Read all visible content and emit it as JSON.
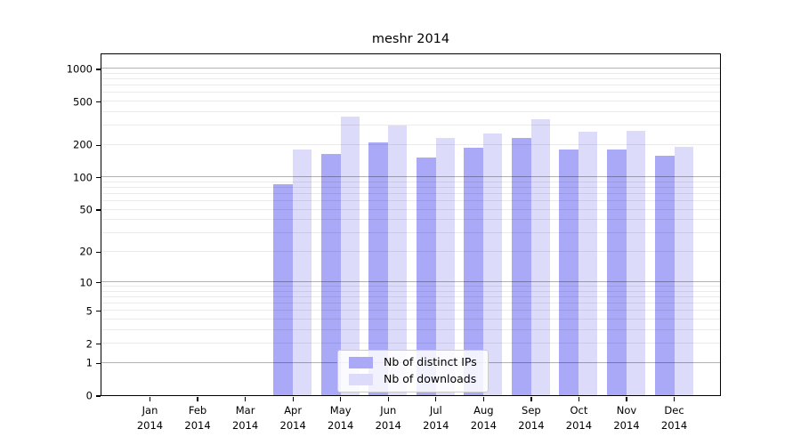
{
  "chart_data": {
    "type": "bar",
    "title": "meshr 2014",
    "scale": "log1p",
    "categories": [
      "Jan",
      "Feb",
      "Mar",
      "Apr",
      "May",
      "Jun",
      "Jul",
      "Aug",
      "Sep",
      "Oct",
      "Nov",
      "Dec"
    ],
    "year_label": "2014",
    "series": [
      {
        "name": "Nb of distinct IPs",
        "color": "#a9a9f8",
        "values": [
          0,
          0,
          0,
          85,
          163,
          210,
          152,
          187,
          230,
          181,
          181,
          158
        ]
      },
      {
        "name": "Nb of downloads",
        "color": "#dcdcfa",
        "values": [
          0,
          0,
          0,
          180,
          362,
          300,
          230,
          250,
          343,
          262,
          268,
          191
        ]
      }
    ],
    "ytick_values": [
      0,
      1,
      2,
      5,
      10,
      20,
      50,
      100,
      200,
      500,
      1000
    ],
    "grid_major_values": [
      1,
      10,
      100,
      1000
    ],
    "grid_minor_values": [
      2,
      3,
      4,
      5,
      6,
      7,
      8,
      9,
      20,
      30,
      40,
      50,
      60,
      70,
      80,
      90,
      200,
      300,
      400,
      500,
      600,
      700,
      800,
      900
    ],
    "ylim": [
      0,
      1400
    ],
    "legend_position": "lower center",
    "grid_on": true,
    "axis_color": "#000000",
    "background_color": "#ffffff"
  }
}
